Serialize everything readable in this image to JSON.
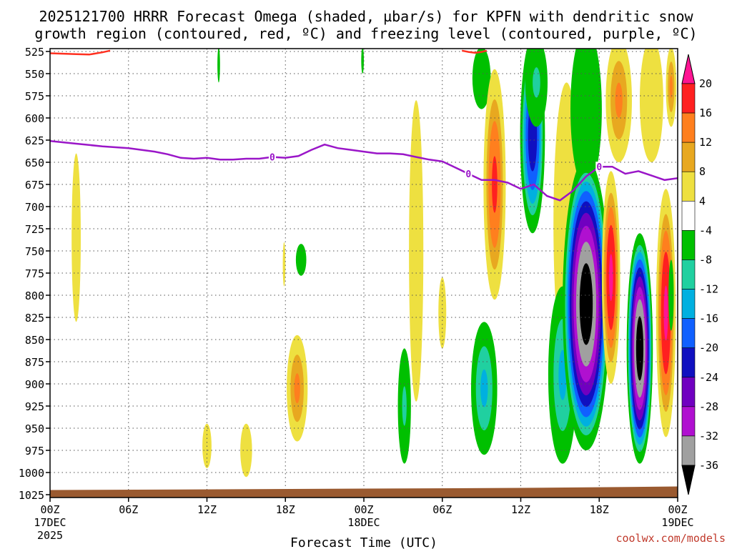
{
  "chart_data": {
    "type": "heatmap",
    "title_line1": "2025121700 HRRR Forecast Omega (shaded, µbar/s) for KPFN with dendritic snow",
    "title_line2": "growth region (contoured, red, ºC) and freezing level (contoured, purple, ºC)",
    "xlabel": "Forecast Time (UTC)",
    "credit": "coolwx.com/models",
    "x_hours_range": [
      0,
      48
    ],
    "y_pressure_range": [
      520,
      1035
    ],
    "y_ticks": [
      525,
      550,
      575,
      600,
      625,
      650,
      675,
      700,
      725,
      750,
      775,
      800,
      825,
      850,
      875,
      900,
      925,
      950,
      975,
      1000,
      1025
    ],
    "x_ticks": [
      {
        "hour": 0,
        "label": "00Z",
        "label2": "17DEC",
        "label3": "2025"
      },
      {
        "hour": 6,
        "label": "06Z"
      },
      {
        "hour": 12,
        "label": "12Z"
      },
      {
        "hour": 18,
        "label": "18Z"
      },
      {
        "hour": 24,
        "label": "00Z",
        "label2": "18DEC"
      },
      {
        "hour": 30,
        "label": "06Z"
      },
      {
        "hour": 36,
        "label": "12Z"
      },
      {
        "hour": 42,
        "label": "18Z"
      },
      {
        "hour": 48,
        "label": "00Z",
        "label2": "19DEC"
      }
    ],
    "colorbar": {
      "levels": [
        20,
        16,
        12,
        8,
        4,
        -4,
        -8,
        -12,
        -16,
        -20,
        -24,
        -28,
        -32,
        -36
      ],
      "colors": [
        "#ff1493",
        "#ff2020",
        "#ff7f1e",
        "#e8a820",
        "#eee040",
        "#ffffff",
        "#00c000",
        "#20d0a0",
        "#00b0e0",
        "#1060ff",
        "#1010c0",
        "#7000c0",
        "#b010d0",
        "#a0a0a0",
        "#000000"
      ]
    },
    "freezing_level": {
      "color": "#9a16c8",
      "label": "0",
      "hours": [
        0,
        2,
        4,
        6,
        8,
        9,
        10,
        11,
        12,
        13,
        14,
        15,
        16,
        17,
        18,
        19,
        20,
        21,
        22,
        23,
        24,
        25,
        26,
        27,
        28,
        29,
        30,
        31,
        32,
        33,
        34,
        35,
        36,
        37,
        38,
        39,
        40,
        41,
        42,
        43,
        44,
        45,
        46,
        47,
        48
      ],
      "pressure": [
        626,
        629,
        632,
        634,
        638,
        641,
        645,
        646,
        645,
        647,
        647,
        646,
        646,
        644,
        645,
        643,
        636,
        630,
        634,
        636,
        638,
        640,
        640,
        641,
        644,
        647,
        649,
        656,
        663,
        670,
        670,
        673,
        680,
        675,
        688,
        693,
        682,
        666,
        655,
        655,
        663,
        660,
        665,
        670,
        668
      ]
    },
    "dgz_top": {
      "color": "#ff3020",
      "hours": [
        0,
        1,
        2,
        3,
        4,
        4.6
      ],
      "pressure": [
        527,
        527.5,
        528,
        528.5,
        526,
        524
      ]
    },
    "dgz_top2": {
      "color": "#ff3020",
      "hours": [
        31.5,
        32,
        32.5,
        33,
        33.4
      ],
      "pressure": [
        524,
        525.5,
        526.5,
        525.5,
        524
      ]
    },
    "terrain": {
      "color": "#9a5a30",
      "pressure_top": 1019
    },
    "omega_cells": [
      {
        "h": 2.0,
        "p": 735,
        "rh": 0.35,
        "rp": 95,
        "v": 4
      },
      {
        "h": 12.0,
        "p": 970,
        "rh": 0.35,
        "rp": 25,
        "v": 4
      },
      {
        "h": 15.0,
        "p": 975,
        "rh": 0.45,
        "rp": 30,
        "v": 4
      },
      {
        "h": 18.9,
        "p": 905,
        "rh": 0.8,
        "rp": 60,
        "v": 12
      },
      {
        "h": 17.9,
        "p": 765,
        "rh": 0.1,
        "rp": 25,
        "v": 4
      },
      {
        "h": 19.2,
        "p": 760,
        "rh": 0.4,
        "rp": 18,
        "v": -6
      },
      {
        "h": 12.9,
        "p": 540,
        "rh": 0.1,
        "rp": 20,
        "v": -6
      },
      {
        "h": 23.9,
        "p": 535,
        "rh": 0.1,
        "rp": 15,
        "v": -6
      },
      {
        "h": 28.0,
        "p": 750,
        "rh": 0.55,
        "rp": 170,
        "v": 4
      },
      {
        "h": 27.1,
        "p": 925,
        "rh": 0.5,
        "rp": 65,
        "v": -8
      },
      {
        "h": 30.0,
        "p": 820,
        "rh": 0.3,
        "rp": 40,
        "v": 4
      },
      {
        "h": 33.2,
        "p": 905,
        "rh": 1.0,
        "rp": 75,
        "v": -12
      },
      {
        "h": 33.0,
        "p": 555,
        "rh": 0.7,
        "rp": 35,
        "v": -6
      },
      {
        "h": 34.0,
        "p": 675,
        "rh": 0.85,
        "rp": 130,
        "v": 16
      },
      {
        "h": 36.9,
        "p": 620,
        "rh": 0.95,
        "rp": 110,
        "v": -22
      },
      {
        "h": 37.2,
        "p": 560,
        "rh": 0.85,
        "rp": 50,
        "v": -8
      },
      {
        "h": 39.5,
        "p": 720,
        "rh": 1.0,
        "rp": 160,
        "v": 4
      },
      {
        "h": 39.2,
        "p": 890,
        "rh": 1.1,
        "rp": 100,
        "v": -12
      },
      {
        "h": 41.0,
        "p": 590,
        "rh": 1.2,
        "rp": 90,
        "v": -6
      },
      {
        "h": 41.0,
        "p": 810,
        "rh": 1.8,
        "rp": 165,
        "v": -38
      },
      {
        "h": 42.9,
        "p": 780,
        "rh": 0.7,
        "rp": 120,
        "v": 20
      },
      {
        "h": 43.5,
        "p": 580,
        "rh": 1.0,
        "rp": 70,
        "v": 12
      },
      {
        "h": 45.1,
        "p": 860,
        "rh": 1.0,
        "rp": 130,
        "v": -38
      },
      {
        "h": 46.0,
        "p": 580,
        "rh": 0.9,
        "rp": 70,
        "v": 4
      },
      {
        "h": 47.1,
        "p": 820,
        "rh": 0.75,
        "rp": 140,
        "v": 20
      },
      {
        "h": 47.5,
        "p": 565,
        "rh": 0.4,
        "rp": 45,
        "v": 12
      },
      {
        "h": 47.5,
        "p": 800,
        "rh": 0.2,
        "rp": 40,
        "v": -6
      }
    ]
  }
}
